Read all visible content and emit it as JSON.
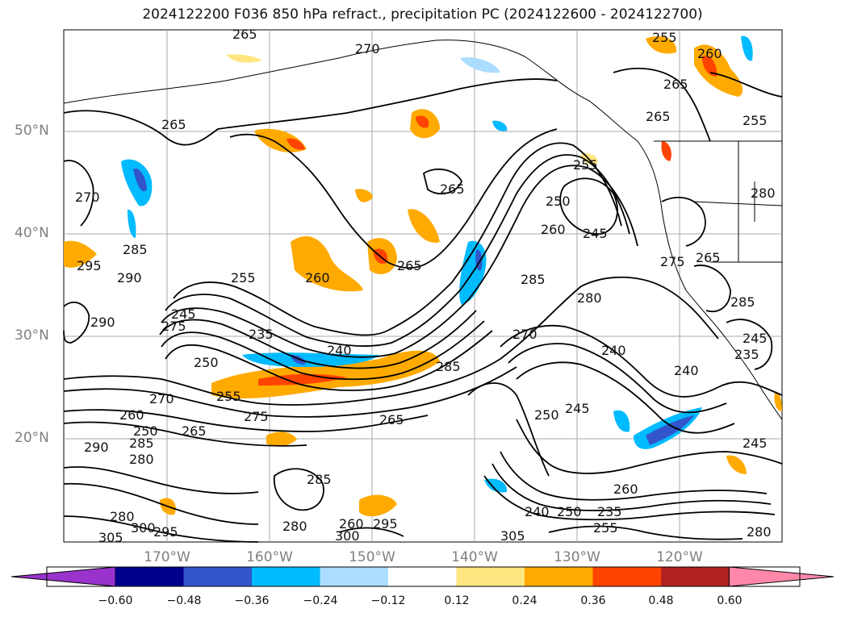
{
  "title": "2024122200 F036 850 hPa refract., precipitation PC (2024122600 - 2024122700)",
  "lat_labels": [
    "50°N",
    "40°N",
    "30°N",
    "20°N"
  ],
  "lon_labels": [
    "170°W",
    "160°W",
    "150°W",
    "140°W",
    "130°W",
    "120°W"
  ],
  "contour_labels": [
    "265",
    "270",
    "265",
    "255",
    "260",
    "265",
    "265",
    "265",
    "255",
    "265",
    "270",
    "285",
    "290",
    "295",
    "290",
    "235",
    "240",
    "245",
    "250",
    "255",
    "260",
    "245",
    "250",
    "260",
    "265",
    "275",
    "285",
    "280",
    "285",
    "240",
    "235",
    "240",
    "245",
    "250",
    "260",
    "280",
    "275",
    "270",
    "265",
    "260",
    "255",
    "250",
    "285",
    "280",
    "285",
    "290",
    "295",
    "300",
    "305",
    "280",
    "295",
    "300",
    "305",
    "280",
    "255",
    "260",
    "245",
    "240",
    "250",
    "255",
    "235",
    "285",
    "245",
    "280",
    "265",
    "270",
    "275"
  ],
  "colorbar": {
    "ticks": [
      "−0.60",
      "−0.48",
      "−0.36",
      "−0.24",
      "−0.12",
      "0.12",
      "0.24",
      "0.36",
      "0.48",
      "0.60"
    ],
    "colors": [
      "#9933cc",
      "#00008b",
      "#3355cc",
      "#00bbff",
      "#aaddff",
      "#ffffff",
      "#ffe680",
      "#ffaa00",
      "#ff4400",
      "#b22222",
      "#ff88aa"
    ]
  }
}
